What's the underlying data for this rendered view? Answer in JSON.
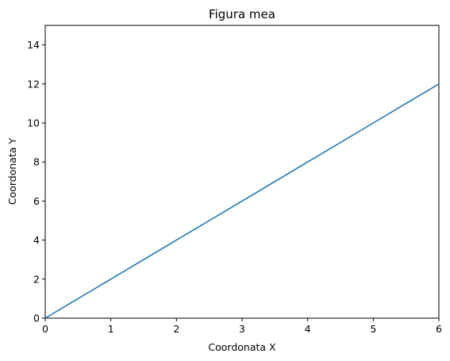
{
  "chart_data": {
    "type": "line",
    "title": "Figura mea",
    "xlabel": "Coordonata X",
    "ylabel": "Coordonata Y",
    "xlim": [
      0,
      6
    ],
    "ylim": [
      0,
      15
    ],
    "x_ticks": [
      0,
      1,
      2,
      3,
      4,
      5,
      6
    ],
    "y_ticks": [
      0,
      2,
      4,
      6,
      8,
      10,
      12,
      14
    ],
    "grid": false,
    "legend": "none",
    "series": [
      {
        "color": "#1f77b4",
        "x": [
          0,
          1,
          2,
          3,
          4,
          5,
          6
        ],
        "y": [
          0,
          2,
          4,
          6,
          8,
          10,
          12
        ]
      }
    ]
  }
}
